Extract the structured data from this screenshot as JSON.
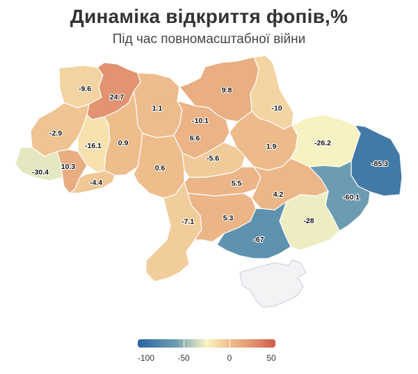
{
  "title": "Динаміка відкриття фопів,%",
  "subtitle": "Під час повномасштабної війни",
  "legend": {
    "min": -100,
    "max": 50,
    "ticks": [
      {
        "value": -100,
        "label": "-100"
      },
      {
        "value": -50,
        "label": "-50"
      },
      {
        "value": 0,
        "label": "0"
      },
      {
        "value": 50,
        "label": "50"
      }
    ],
    "colors": [
      "#2a64a0",
      "#6e9fb2",
      "#fbf5c2",
      "#eec08e",
      "#e39774",
      "#d05a48"
    ]
  },
  "regions": [
    {
      "id": "volyn",
      "value": -9.6
    },
    {
      "id": "rivne",
      "value": 24.7
    },
    {
      "id": "zhytomyr",
      "value": 1.1
    },
    {
      "id": "chernihiv",
      "value": 9.8
    },
    {
      "id": "sumy",
      "value": -10
    },
    {
      "id": "kyiv-city",
      "value": -10.1
    },
    {
      "id": "kyiv-oblast",
      "value": 6.6
    },
    {
      "id": "lviv",
      "value": -2.9
    },
    {
      "id": "ternopil",
      "value": -16.1
    },
    {
      "id": "khmelnytskyi",
      "value": 0.9
    },
    {
      "id": "poltava",
      "value": 1.9
    },
    {
      "id": "kharkiv",
      "value": -26.2
    },
    {
      "id": "luhansk",
      "value": -85.3
    },
    {
      "id": "zakarpattia",
      "value": -30.4
    },
    {
      "id": "ivano-frankivsk",
      "value": 10.3
    },
    {
      "id": "vinnytsia",
      "value": 0.6
    },
    {
      "id": "cherkasy",
      "value": -5.6
    },
    {
      "id": "chernivtsi",
      "value": -4.4
    },
    {
      "id": "kirovohrad",
      "value": 5.5
    },
    {
      "id": "dnipropetrovsk",
      "value": 4.2
    },
    {
      "id": "donetsk",
      "value": -60.1
    },
    {
      "id": "odesa",
      "value": -7.1
    },
    {
      "id": "mykolaiv",
      "value": 5.3
    },
    {
      "id": "zaporizhzhia",
      "value": -28
    },
    {
      "id": "kherson",
      "value": -67
    }
  ]
}
